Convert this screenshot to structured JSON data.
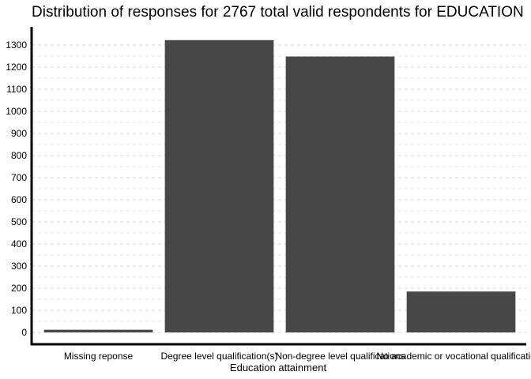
{
  "chart_data": {
    "type": "bar",
    "title": "Distribution of responses for 2767 total valid respondents for EDUCATION",
    "xlabel": "Education attainment",
    "ylabel": "",
    "categories": [
      "Missing reponse",
      "Degree level qualification(s)",
      "Non-degree level qualifications",
      "No academic or vocational qualifications"
    ],
    "values": [
      12,
      1322,
      1248,
      185
    ],
    "ylim": [
      0,
      1360
    ],
    "yticks": [
      0,
      100,
      200,
      300,
      400,
      500,
      600,
      700,
      800,
      900,
      1000,
      1100,
      1200,
      1300
    ],
    "grid": "horizontal-dashed",
    "legend": "none",
    "colors": {
      "bar": "#474747",
      "grid": "#d6d6d6",
      "axis": "#000000"
    }
  }
}
